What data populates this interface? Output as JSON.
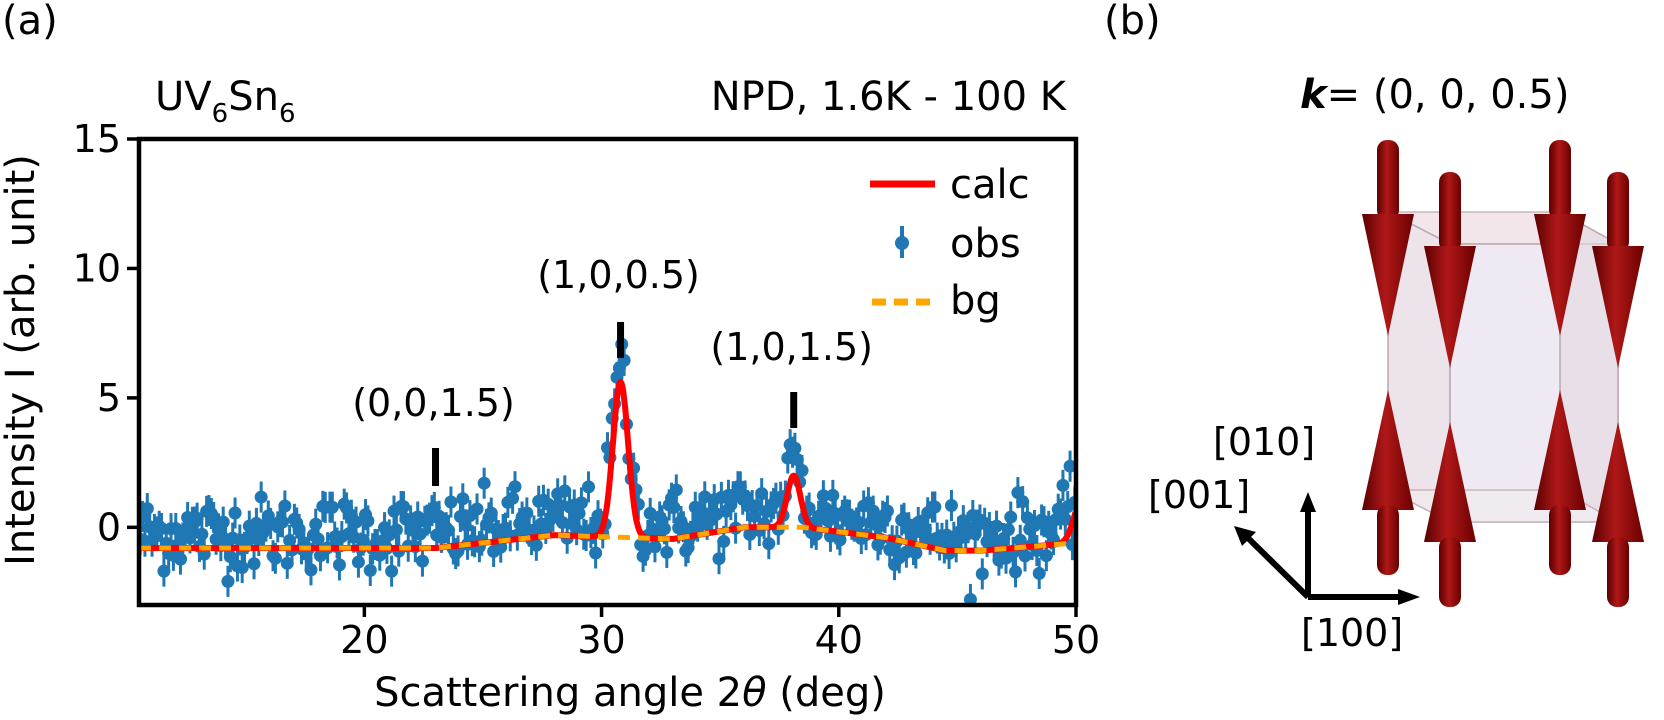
{
  "panels": {
    "a_label": "(a)",
    "b_label": "(b)"
  },
  "chart_data": {
    "type": "scatter",
    "compound": {
      "base": "UV",
      "sub1": "6",
      "mid": "Sn",
      "sub2": "6"
    },
    "measurement": "NPD, 1.6K - 100 K",
    "xlabel": {
      "prefix": "Scattering angle 2",
      "symbol": "θ",
      "suffix": " (deg)"
    },
    "ylabel": "Intensity I (arb. unit)",
    "xlim": [
      10.5,
      50
    ],
    "ylim": [
      -3,
      15
    ],
    "xticks": [
      20,
      30,
      40,
      50
    ],
    "yticks": [
      0,
      5,
      10,
      15
    ],
    "legend_position": "top-right",
    "legend": [
      {
        "label": "calc",
        "style": "line",
        "color": "#ff0000"
      },
      {
        "label": "obs",
        "style": "errorbar-marker",
        "color": "#1f77b4"
      },
      {
        "label": "bg",
        "style": "dashed",
        "color": "#ffa500"
      }
    ],
    "background": {
      "x": [
        10.5,
        23,
        28,
        33,
        36,
        38.5,
        42,
        44.5,
        46,
        50
      ],
      "y": [
        -0.8,
        -0.8,
        -0.3,
        -0.45,
        0,
        0,
        -0.4,
        -0.9,
        -0.9,
        -0.6
      ]
    },
    "peaks": [
      {
        "hkl": "(0,0,1.5)",
        "x": 23.0,
        "height": 0.0,
        "width": 0.35
      },
      {
        "hkl": "(1,0,0.5)",
        "x": 30.8,
        "height": 6.0,
        "width": 0.32
      },
      {
        "hkl": "(1,0,1.5)",
        "x": 38.1,
        "height": 2.0,
        "width": 0.28
      }
    ],
    "edge_peak": {
      "x": 50.3,
      "height": 1.8,
      "width": 0.35
    },
    "observed_noise_sd": 0.7,
    "observed_errorbar": 0.6,
    "observed_step": 0.1,
    "tick_marks_x": [
      23.0,
      30.8,
      38.1
    ]
  },
  "structure": {
    "k_symbol": "k",
    "k_value": "= (0, 0, 0.5)",
    "axes": [
      "[010]",
      "[001]",
      "[100]"
    ]
  }
}
